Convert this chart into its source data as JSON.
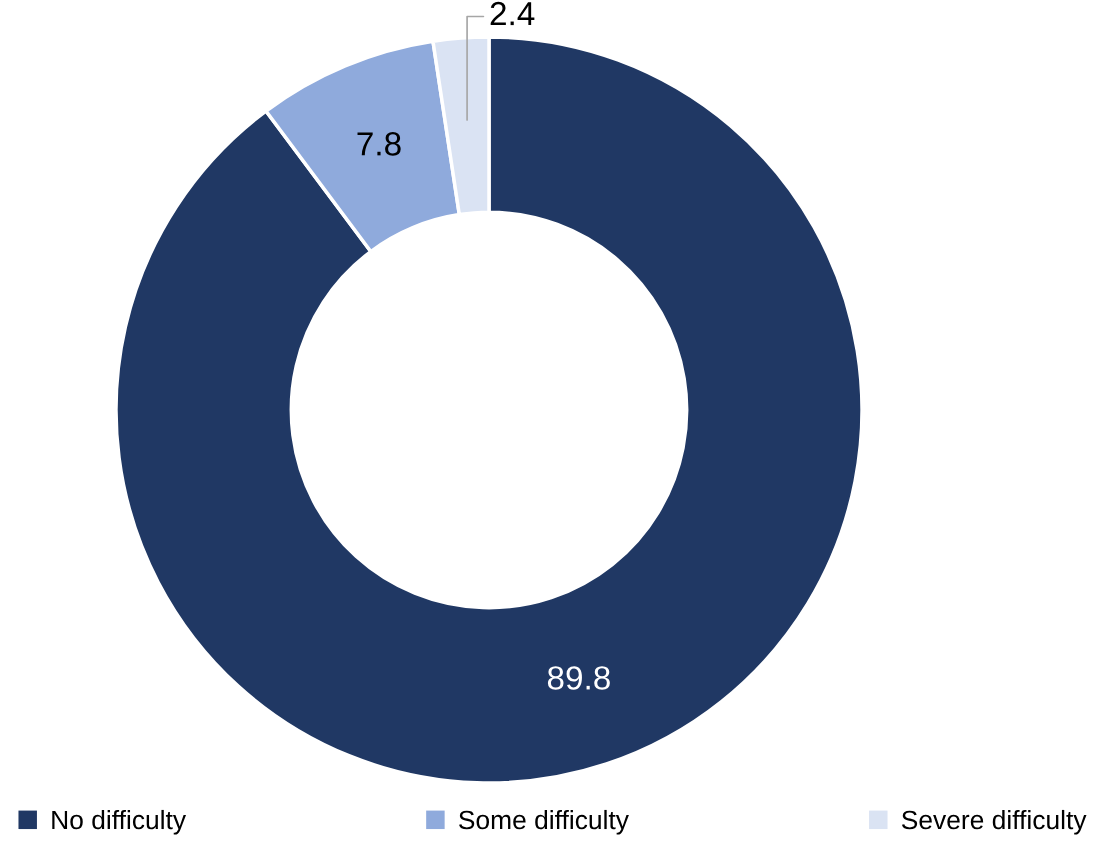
{
  "chart_data": {
    "type": "donut",
    "categories": [
      "No difficulty",
      "Some difficulty",
      "Severe difficulty"
    ],
    "values": [
      89.8,
      7.8,
      2.4
    ],
    "colors": [
      "#203864",
      "#8faadc",
      "#dae3f3"
    ],
    "data_labels": true,
    "legend": "bottom"
  }
}
